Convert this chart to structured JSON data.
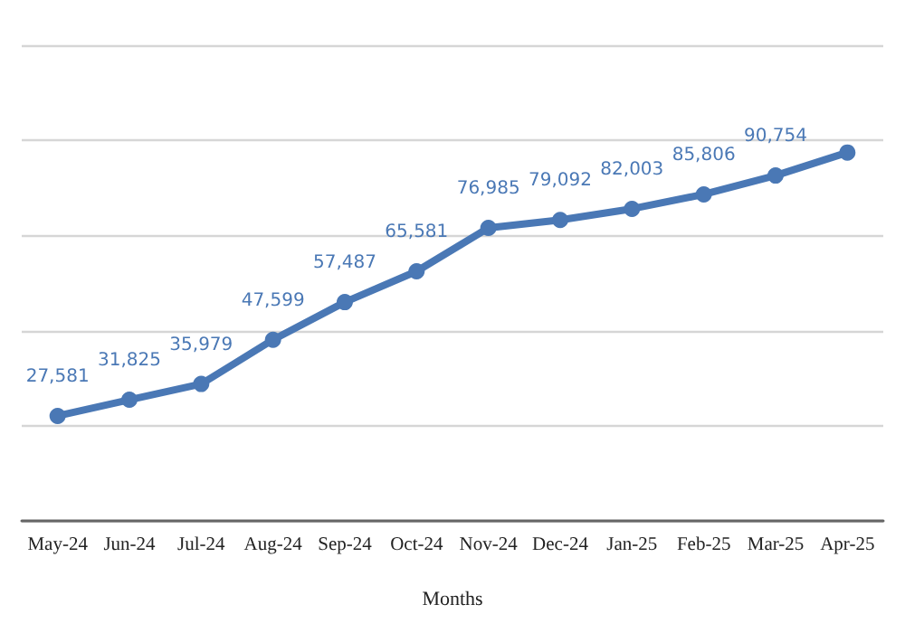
{
  "chart_data": {
    "type": "line",
    "xlabel": "Months",
    "categories": [
      "May-24",
      "Jun-24",
      "Jul-24",
      "Aug-24",
      "Sep-24",
      "Oct-24",
      "Nov-24",
      "Dec-24",
      "Jan-25",
      "Feb-25",
      "Mar-25",
      "Apr-25"
    ],
    "series": [
      {
        "color": "#4a78b5",
        "values": [
          27581,
          31825,
          35979,
          47599,
          57487,
          65581,
          76985,
          79092,
          82003,
          85806,
          90754,
          96800
        ],
        "value_labels": [
          "27,581",
          "31,825",
          "35,979",
          "47,599",
          "57,487",
          "65,581",
          "76,985",
          "79,092",
          "82,003",
          "85,806",
          "90,754",
          null
        ]
      }
    ],
    "ylim": [
      0,
      125000
    ],
    "yticks": [
      {
        "value": 0,
        "label": null
      },
      {
        "value": 25000,
        "label": null
      },
      {
        "value": 50000,
        "label": null
      },
      {
        "value": 75000,
        "label": null
      },
      {
        "value": 100000,
        "label": null
      },
      {
        "value": 125000,
        "label": null
      }
    ],
    "tick_labels": "x",
    "grid": "y",
    "marker": "circle",
    "line_style": "solid"
  }
}
